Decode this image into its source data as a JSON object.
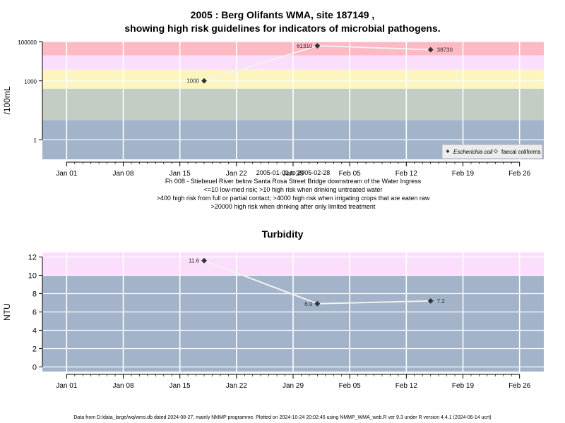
{
  "chart_data": [
    {
      "type": "line",
      "title": "2005 : Berg Olifants WMA, site 187149 ,",
      "subtitle": "showing high risk guidelines for indicators of microbial pathogens.",
      "ylabel": "/100mL",
      "yscale": "log",
      "ylim": [
        0.1,
        100000
      ],
      "yticks": [
        1,
        1000,
        100000
      ],
      "ytick_labels": [
        "1",
        "1000",
        "100000"
      ],
      "xlim": [
        "2004-12-29",
        "2005-03-01"
      ],
      "xticks": [
        "2005-01-01",
        "2005-01-08",
        "2005-01-15",
        "2005-01-22",
        "2005-01-29",
        "2005-02-05",
        "2005-02-12",
        "2005-02-19",
        "2005-02-26"
      ],
      "xtick_labels": [
        "Jan 01",
        "Jan 08",
        "Jan 15",
        "Jan 22",
        "Jan 29",
        "Feb 05",
        "Feb 12",
        "Feb 19",
        "Feb 26"
      ],
      "bands": [
        {
          "from": 0.1,
          "to": 10,
          "color": "#a3b3ca"
        },
        {
          "from": 10,
          "to": 400,
          "color": "#c3cdc3"
        },
        {
          "from": 400,
          "to": 4000,
          "color": "#fdf5c0"
        },
        {
          "from": 4000,
          "to": 20000,
          "color": "#fbdefb"
        },
        {
          "from": 20000,
          "to": 100000,
          "color": "#fdb9c4"
        }
      ],
      "series": [
        {
          "name": "Escherichia coli",
          "marker": "filled-diamond",
          "x": [
            "2005-01-18",
            "2005-02-01",
            "2005-02-15"
          ],
          "y": [
            1000,
            61310,
            38730
          ],
          "labels": [
            "1000",
            "61310",
            "38730"
          ]
        }
      ],
      "legend": {
        "position": "bottom-right",
        "entries": [
          "Escherichia coli",
          "faecal coliforms"
        ]
      },
      "date_range": "2005-01-01 to 2005-02-28",
      "notes": [
        "Fh 008 - Stiebeuel River below Santa Rosa Street Bridge downstream of the Water Ingress",
        "<=10 low-med risk; >10 high risk when drinking untreated water",
        ">400 high risk from full or partial contact; >4000 high risk when irrigating crops that are eaten raw",
        ">20000 high risk when drinking after only limited treatment"
      ]
    },
    {
      "type": "line",
      "title": "Turbidity",
      "ylabel": "NTU",
      "ylim": [
        -0.5,
        12.5
      ],
      "yticks": [
        0,
        2,
        4,
        6,
        8,
        10,
        12
      ],
      "xlim": [
        "2004-12-29",
        "2005-03-01"
      ],
      "xticks": [
        "2005-01-01",
        "2005-01-08",
        "2005-01-15",
        "2005-01-22",
        "2005-01-29",
        "2005-02-05",
        "2005-02-12",
        "2005-02-19",
        "2005-02-26"
      ],
      "xtick_labels": [
        "Jan 01",
        "Jan 08",
        "Jan 15",
        "Jan 22",
        "Jan 29",
        "Feb 05",
        "Feb 12",
        "Feb 19",
        "Feb 26"
      ],
      "bands": [
        {
          "from": -0.5,
          "to": 10,
          "color": "#a3b3ca"
        },
        {
          "from": 10,
          "to": 12.5,
          "color": "#fbdefb"
        }
      ],
      "series": [
        {
          "x": [
            "2005-01-18",
            "2005-02-01",
            "2005-02-15"
          ],
          "y": [
            11.6,
            6.9,
            7.2
          ],
          "labels": [
            "11.6",
            "6.9",
            "7.2"
          ]
        }
      ]
    }
  ],
  "footer": "Data from D:/data_large/wq/wms.db dated 2024-08-27, mainly NMMP programme. Plotted on 2024-10-24 20:02:45 using NMMP_WMA_web.R ver 9.3 under R version 4.4.1 (2024-06-14 ucrt)"
}
